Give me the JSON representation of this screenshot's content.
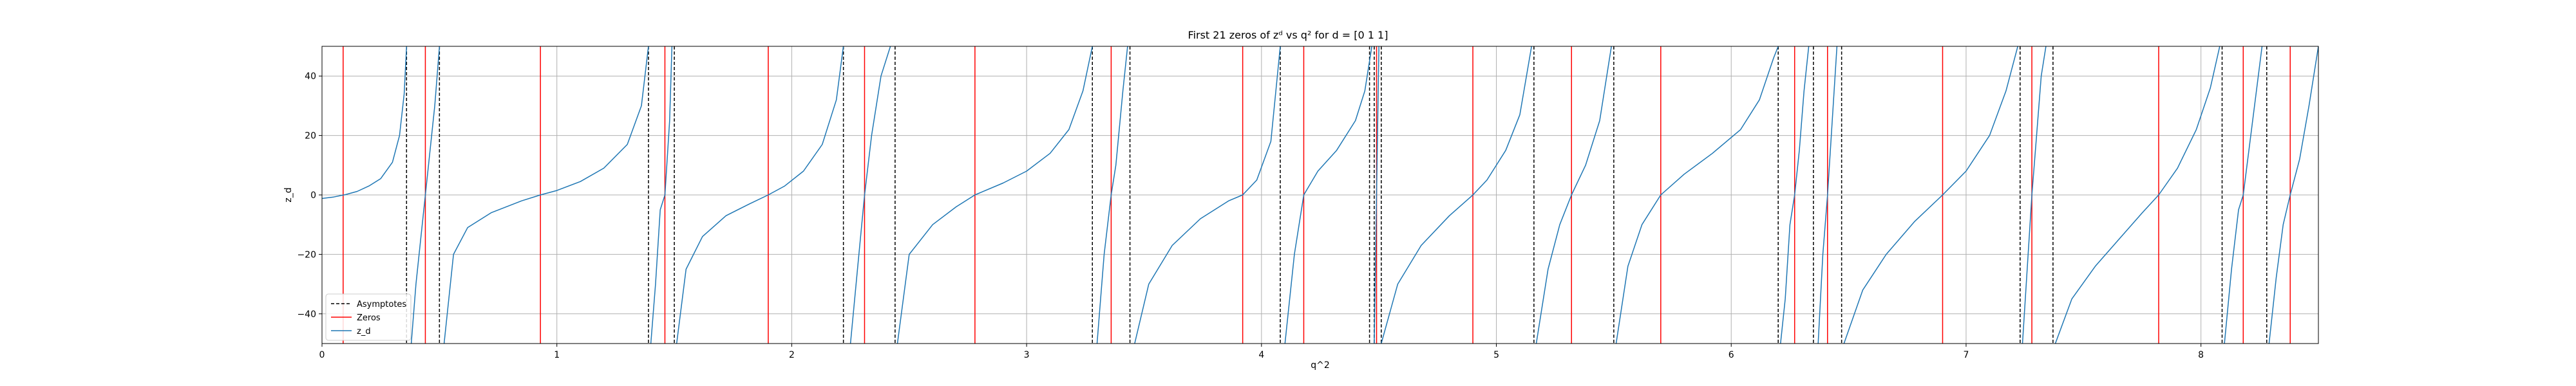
{
  "chart_data": {
    "type": "line",
    "title": "First 21 zeros of zᵈ vs q² for d = [0 1 1]",
    "xlabel": "q^2",
    "ylabel": "z_d",
    "xlim": [
      0,
      8.5
    ],
    "ylim": [
      -50,
      50
    ],
    "xticks": [
      0,
      1,
      2,
      3,
      4,
      5,
      6,
      7,
      8
    ],
    "yticks": [
      -40,
      -20,
      0,
      20,
      40
    ],
    "grid": true,
    "legend_position": "lower-left",
    "legend": [
      {
        "label": "Asymptotes",
        "style": "dashed",
        "color": "#000000"
      },
      {
        "label": "Zeros",
        "style": "solid",
        "color": "#ff0000"
      },
      {
        "label": "z_d",
        "style": "solid",
        "color": "#1f77b4"
      }
    ],
    "series": [
      {
        "name": "z_d",
        "color": "#1f77b4",
        "segments": [
          {
            "x": [
              0.0,
              0.05,
              0.1,
              0.15,
              0.2,
              0.25,
              0.3,
              0.33,
              0.35,
              0.36
            ],
            "y": [
              -1.2,
              -0.7,
              0.1,
              1.2,
              3.0,
              5.5,
              11.0,
              20.0,
              34.0,
              50.0
            ]
          },
          {
            "x": [
              0.38,
              0.4,
              0.42,
              0.44,
              0.46,
              0.48,
              0.5
            ],
            "y": [
              -50.0,
              -30.0,
              -15.0,
              0.0,
              15.0,
              30.0,
              50.0
            ]
          },
          {
            "x": [
              0.52,
              0.56,
              0.62,
              0.72,
              0.85,
              0.93,
              1.0,
              1.1,
              1.2,
              1.3,
              1.36,
              1.39
            ],
            "y": [
              -50.0,
              -20.0,
              -11.0,
              -6.0,
              -2.0,
              0.0,
              1.5,
              4.5,
              9.0,
              17.0,
              30.0,
              50.0
            ]
          },
          {
            "x": [
              1.4,
              1.42,
              1.44,
              1.46,
              1.48,
              1.49
            ],
            "y": [
              -50.0,
              -30.0,
              -5.0,
              0.0,
              25.0,
              50.0
            ]
          },
          {
            "x": [
              1.51,
              1.55,
              1.62,
              1.72,
              1.82,
              1.9,
              1.97,
              2.05,
              2.13,
              2.19,
              2.22
            ],
            "y": [
              -50.0,
              -25.0,
              -14.0,
              -7.0,
              -3.0,
              0.0,
              3.0,
              8.0,
              17.0,
              32.0,
              50.0
            ]
          },
          {
            "x": [
              2.25,
              2.28,
              2.31,
              2.34,
              2.38,
              2.42
            ],
            "y": [
              -50.0,
              -25.0,
              0.0,
              20.0,
              40.0,
              50.0
            ]
          },
          {
            "x": [
              2.45,
              2.5,
              2.6,
              2.7,
              2.78,
              2.9,
              3.0,
              3.1,
              3.18,
              3.24,
              3.28
            ],
            "y": [
              -50.0,
              -20.0,
              -10.0,
              -4.0,
              0.0,
              4.0,
              8.0,
              14.0,
              22.0,
              35.0,
              50.0
            ]
          },
          {
            "x": [
              3.3,
              3.33,
              3.36,
              3.38,
              3.41,
              3.43
            ],
            "y": [
              -50.0,
              -20.0,
              0.0,
              10.0,
              35.0,
              50.0
            ]
          },
          {
            "x": [
              3.46,
              3.52,
              3.62,
              3.74,
              3.86,
              3.92,
              3.98,
              4.04,
              4.08
            ],
            "y": [
              -50.0,
              -30.0,
              -17.0,
              -8.0,
              -2.0,
              0.0,
              5.0,
              18.0,
              50.0
            ]
          },
          {
            "x": [
              4.1,
              4.14,
              4.18,
              4.24,
              4.32,
              4.4,
              4.44,
              4.47
            ],
            "y": [
              -50.0,
              -20.0,
              0.0,
              8.0,
              15.0,
              25.0,
              35.0,
              50.0
            ]
          },
          {
            "x": [
              4.48,
              4.49,
              4.5
            ],
            "y": [
              -50.0,
              0.0,
              50.0
            ]
          },
          {
            "x": [
              4.51,
              4.58,
              4.68,
              4.8,
              4.9,
              4.96,
              5.04,
              5.1,
              5.15
            ],
            "y": [
              -50.0,
              -30.0,
              -17.0,
              -7.0,
              0.0,
              5.0,
              15.0,
              27.0,
              50.0
            ]
          },
          {
            "x": [
              5.17,
              5.22,
              5.27,
              5.32,
              5.38,
              5.44,
              5.49
            ],
            "y": [
              -50.0,
              -25.0,
              -10.0,
              0.0,
              10.0,
              25.0,
              50.0
            ]
          },
          {
            "x": [
              5.51,
              5.56,
              5.62,
              5.7,
              5.8,
              5.92,
              6.04,
              6.12,
              6.18,
              6.2
            ],
            "y": [
              -50.0,
              -24.0,
              -10.0,
              0.0,
              7.0,
              14.0,
              22.0,
              32.0,
              46.0,
              50.0
            ]
          },
          {
            "x": [
              6.21,
              6.23,
              6.25,
              6.27,
              6.29,
              6.31,
              6.33
            ],
            "y": [
              -50.0,
              -35.0,
              -10.0,
              0.0,
              15.0,
              35.0,
              50.0
            ]
          },
          {
            "x": [
              6.37,
              6.39,
              6.41,
              6.43,
              6.45
            ],
            "y": [
              -50.0,
              -20.0,
              0.0,
              25.0,
              50.0
            ]
          },
          {
            "x": [
              6.48,
              6.56,
              6.66,
              6.78,
              6.9,
              7.0,
              7.1,
              7.17,
              7.22
            ],
            "y": [
              -50.0,
              -32.0,
              -20.0,
              -9.0,
              0.0,
              8.0,
              20.0,
              35.0,
              50.0
            ]
          },
          {
            "x": [
              7.24,
              7.26,
              7.28,
              7.3,
              7.32,
              7.34
            ],
            "y": [
              -50.0,
              -25.0,
              0.0,
              20.0,
              40.0,
              50.0
            ]
          },
          {
            "x": [
              7.38,
              7.45,
              7.55,
              7.65,
              7.75,
              7.82,
              7.9,
              7.98,
              8.04,
              8.08
            ],
            "y": [
              -50.0,
              -35.0,
              -24.0,
              -15.0,
              -6.0,
              0.0,
              9.0,
              22.0,
              36.0,
              50.0
            ]
          },
          {
            "x": [
              8.1,
              8.13,
              8.16,
              8.18,
              8.22,
              8.26
            ],
            "y": [
              -50.0,
              -25.0,
              -5.0,
              0.0,
              25.0,
              50.0
            ]
          },
          {
            "x": [
              8.29,
              8.32,
              8.35,
              8.38,
              8.42,
              8.46,
              8.5
            ],
            "y": [
              -50.0,
              -28.0,
              -10.0,
              0.0,
              12.0,
              30.0,
              50.0
            ]
          }
        ]
      }
    ],
    "asymptotes": [
      0.36,
      0.5,
      1.39,
      1.5,
      2.22,
      2.44,
      3.28,
      3.44,
      4.08,
      4.46,
      4.48,
      4.51,
      5.16,
      5.5,
      6.2,
      6.35,
      6.47,
      7.23,
      7.37,
      8.09,
      8.28
    ],
    "zeros": [
      0.09,
      0.44,
      0.93,
      1.46,
      1.9,
      2.31,
      2.78,
      3.36,
      3.92,
      4.18,
      4.49,
      4.9,
      5.32,
      5.7,
      6.27,
      6.41,
      6.9,
      7.28,
      7.82,
      8.18,
      8.38
    ]
  }
}
